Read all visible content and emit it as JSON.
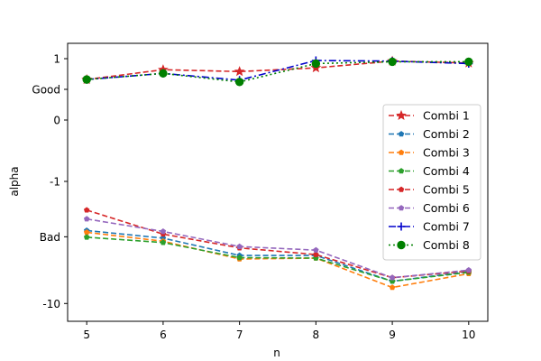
{
  "chart_data": {
    "type": "line",
    "xlabel": "n",
    "ylabel": "alpha",
    "x": [
      5,
      6,
      7,
      8,
      9,
      10
    ],
    "xlim": [
      4.75,
      10.25
    ],
    "ylim": [
      -10.4,
      1.25
    ],
    "yticks": [
      {
        "value": 1,
        "label": "1"
      },
      {
        "value": 0.5,
        "label": "Good"
      },
      {
        "value": 0,
        "label": "0"
      },
      {
        "value": -1,
        "label": "-1"
      },
      {
        "value": -8.5,
        "label": "Bad"
      },
      {
        "value": -10,
        "label": "-10"
      }
    ],
    "legend_position": "right",
    "series": [
      {
        "name": "Combi 1",
        "color": "#d62728",
        "dash": "6,3",
        "marker": "star",
        "values": [
          0.66,
          0.82,
          0.79,
          0.85,
          0.96,
          0.93
        ]
      },
      {
        "name": "Combi 2",
        "color": "#1f77b4",
        "dash": "6,3",
        "marker": "pentagon",
        "values": [
          -8.36,
          -8.53,
          -8.92,
          -8.92,
          -9.5,
          -9.28
        ]
      },
      {
        "name": "Combi 3",
        "color": "#ff7f0e",
        "dash": "6,3",
        "marker": "pentagon",
        "values": [
          -8.4,
          -8.6,
          -9.0,
          -8.98,
          -9.64,
          -9.33
        ]
      },
      {
        "name": "Combi 4",
        "color": "#2ca02c",
        "dash": "6,3",
        "marker": "pentagon",
        "values": [
          -8.51,
          -8.63,
          -8.97,
          -8.98,
          -9.5,
          -9.3
        ]
      },
      {
        "name": "Combi 5",
        "color": "#d62728",
        "dash": "6,3",
        "marker": "pentagon",
        "values": [
          -7.9,
          -8.44,
          -8.75,
          -8.9,
          -9.42,
          -9.27
        ]
      },
      {
        "name": "Combi 6",
        "color": "#9467bd",
        "dash": "6,3",
        "marker": "pentagon",
        "values": [
          -8.1,
          -8.38,
          -8.72,
          -8.8,
          -9.42,
          -9.25
        ]
      },
      {
        "name": "Combi 7",
        "color": "#0000cc",
        "dash": "8,3,2,3",
        "marker": "plus",
        "values": [
          0.66,
          0.76,
          0.65,
          0.97,
          0.96,
          0.92
        ]
      },
      {
        "name": "Combi 8",
        "color": "#008000",
        "dash": "2,3",
        "marker": "circle",
        "values": [
          0.66,
          0.76,
          0.62,
          0.92,
          0.95,
          0.95
        ]
      }
    ]
  }
}
